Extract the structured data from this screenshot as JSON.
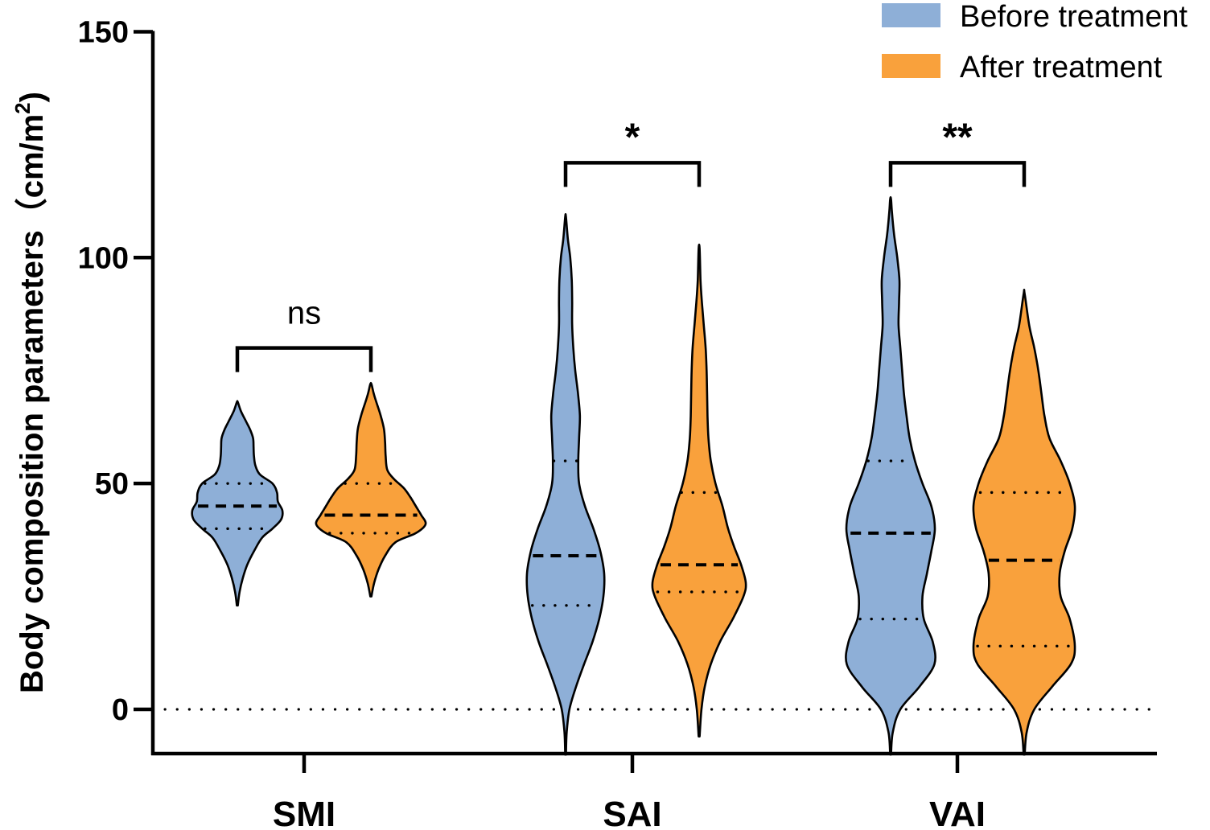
{
  "chart_data": {
    "type": "violin",
    "title": "",
    "xlabel": "",
    "ylabel": "Body composition parameters（cm/m",
    "ylabel_superscript": "2",
    "ylabel_close": ")",
    "ylim": [
      -10,
      150
    ],
    "yticks": [
      0,
      50,
      100,
      150
    ],
    "categories": [
      "SMI",
      "SAI",
      "VAI"
    ],
    "reference_line_y": 0,
    "series": [
      {
        "name": "Before treatment",
        "color": "#8eafd7"
      },
      {
        "name": "After treatment",
        "color": "#f9a13c"
      }
    ],
    "violins": [
      {
        "category": "SMI",
        "series": "Before treatment",
        "min": 23,
        "max": 68,
        "q1": 40,
        "median": 45,
        "q3": 50,
        "profile": [
          [
            23,
            0.01
          ],
          [
            26,
            0.05
          ],
          [
            29,
            0.12
          ],
          [
            32,
            0.22
          ],
          [
            35,
            0.37
          ],
          [
            38,
            0.55
          ],
          [
            40,
            0.78
          ],
          [
            42,
            0.97
          ],
          [
            44,
            1.0
          ],
          [
            46,
            0.9
          ],
          [
            48,
            0.88
          ],
          [
            50,
            0.78
          ],
          [
            52,
            0.5
          ],
          [
            54,
            0.4
          ],
          [
            56,
            0.37
          ],
          [
            58,
            0.36
          ],
          [
            60,
            0.35
          ],
          [
            62,
            0.28
          ],
          [
            64,
            0.18
          ],
          [
            66,
            0.08
          ],
          [
            68,
            0.01
          ]
        ]
      },
      {
        "category": "SMI",
        "series": "After treatment",
        "min": 25,
        "max": 72,
        "q1": 39,
        "median": 43,
        "q3": 50,
        "profile": [
          [
            25,
            0.01
          ],
          [
            28,
            0.06
          ],
          [
            31,
            0.14
          ],
          [
            34,
            0.26
          ],
          [
            37,
            0.45
          ],
          [
            39,
            0.82
          ],
          [
            41,
            1.0
          ],
          [
            43,
            0.92
          ],
          [
            45,
            0.82
          ],
          [
            47,
            0.72
          ],
          [
            49,
            0.6
          ],
          [
            51,
            0.42
          ],
          [
            53,
            0.3
          ],
          [
            56,
            0.27
          ],
          [
            59,
            0.26
          ],
          [
            62,
            0.24
          ],
          [
            65,
            0.18
          ],
          [
            68,
            0.1
          ],
          [
            70,
            0.05
          ],
          [
            72,
            0.01
          ]
        ]
      },
      {
        "category": "SAI",
        "series": "Before treatment",
        "min": -10,
        "max": 109,
        "q1": 23,
        "median": 34,
        "q3": 55,
        "profile": [
          [
            -10,
            0.01
          ],
          [
            -5,
            0.03
          ],
          [
            0,
            0.1
          ],
          [
            5,
            0.27
          ],
          [
            10,
            0.48
          ],
          [
            15,
            0.7
          ],
          [
            20,
            0.87
          ],
          [
            25,
            0.98
          ],
          [
            30,
            1.0
          ],
          [
            35,
            0.9
          ],
          [
            40,
            0.72
          ],
          [
            45,
            0.5
          ],
          [
            50,
            0.35
          ],
          [
            55,
            0.33
          ],
          [
            60,
            0.35
          ],
          [
            65,
            0.37
          ],
          [
            70,
            0.32
          ],
          [
            75,
            0.25
          ],
          [
            80,
            0.2
          ],
          [
            85,
            0.17
          ],
          [
            90,
            0.17
          ],
          [
            95,
            0.16
          ],
          [
            100,
            0.12
          ],
          [
            104,
            0.06
          ],
          [
            109,
            0.01
          ]
        ]
      },
      {
        "category": "SAI",
        "series": "After treatment",
        "min": -6,
        "max": 102,
        "q1": 26,
        "median": 32,
        "q3": 48,
        "profile": [
          [
            -6,
            0.01
          ],
          [
            0,
            0.05
          ],
          [
            5,
            0.12
          ],
          [
            10,
            0.25
          ],
          [
            15,
            0.45
          ],
          [
            20,
            0.72
          ],
          [
            25,
            0.95
          ],
          [
            28,
            1.0
          ],
          [
            32,
            0.9
          ],
          [
            36,
            0.75
          ],
          [
            40,
            0.62
          ],
          [
            45,
            0.5
          ],
          [
            50,
            0.35
          ],
          [
            55,
            0.25
          ],
          [
            60,
            0.2
          ],
          [
            65,
            0.18
          ],
          [
            70,
            0.17
          ],
          [
            75,
            0.16
          ],
          [
            80,
            0.14
          ],
          [
            85,
            0.1
          ],
          [
            90,
            0.06
          ],
          [
            95,
            0.03
          ],
          [
            102,
            0.01
          ]
        ]
      },
      {
        "category": "VAI",
        "series": "Before treatment",
        "min": -10,
        "max": 113,
        "q1": 20,
        "median": 39,
        "q3": 55,
        "profile": [
          [
            -10,
            0.01
          ],
          [
            -5,
            0.05
          ],
          [
            0,
            0.22
          ],
          [
            5,
            0.65
          ],
          [
            10,
            0.99
          ],
          [
            15,
            0.95
          ],
          [
            20,
            0.75
          ],
          [
            25,
            0.72
          ],
          [
            30,
            0.82
          ],
          [
            35,
            0.92
          ],
          [
            40,
            1.0
          ],
          [
            45,
            0.92
          ],
          [
            50,
            0.72
          ],
          [
            55,
            0.55
          ],
          [
            60,
            0.43
          ],
          [
            65,
            0.36
          ],
          [
            70,
            0.3
          ],
          [
            75,
            0.26
          ],
          [
            80,
            0.22
          ],
          [
            85,
            0.18
          ],
          [
            90,
            0.19
          ],
          [
            95,
            0.2
          ],
          [
            100,
            0.15
          ],
          [
            105,
            0.08
          ],
          [
            110,
            0.03
          ],
          [
            113,
            0.01
          ]
        ]
      },
      {
        "category": "VAI",
        "series": "After treatment",
        "min": -10,
        "max": 92,
        "q1": 14,
        "median": 33,
        "q3": 48,
        "profile": [
          [
            -10,
            0.01
          ],
          [
            -5,
            0.05
          ],
          [
            0,
            0.2
          ],
          [
            5,
            0.55
          ],
          [
            10,
            0.92
          ],
          [
            14,
            1.0
          ],
          [
            20,
            0.9
          ],
          [
            25,
            0.72
          ],
          [
            30,
            0.7
          ],
          [
            35,
            0.8
          ],
          [
            40,
            0.95
          ],
          [
            45,
            1.0
          ],
          [
            50,
            0.9
          ],
          [
            55,
            0.72
          ],
          [
            60,
            0.5
          ],
          [
            65,
            0.4
          ],
          [
            70,
            0.34
          ],
          [
            75,
            0.28
          ],
          [
            80,
            0.2
          ],
          [
            85,
            0.1
          ],
          [
            92,
            0.01
          ]
        ]
      }
    ],
    "significance": [
      {
        "category": "SMI",
        "label": "ns",
        "bracket_y": 80
      },
      {
        "category": "SAI",
        "label": "*",
        "bracket_y": 121
      },
      {
        "category": "VAI",
        "label": "**",
        "bracket_y": 121
      }
    ],
    "legend_position": "top-right"
  }
}
